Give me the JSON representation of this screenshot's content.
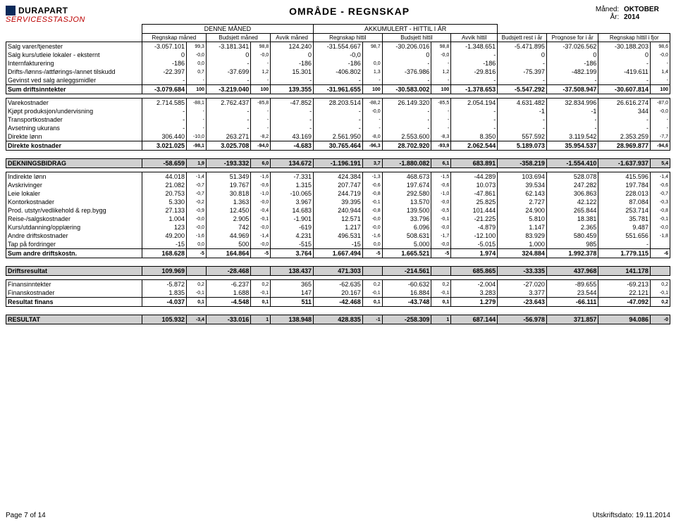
{
  "logo": {
    "line1": "DURAPART",
    "line2": "SERVICESSTASJON"
  },
  "title": "OMRÅDE - REGNSKAP",
  "meta": {
    "month_label": "Måned:",
    "month": "OKTOBER",
    "year_label": "År:",
    "year": "2014"
  },
  "group_headers": {
    "g1": "DENNE MÅNED",
    "g2": "AKKUMULERT - HITTIL I ÅR"
  },
  "sub_headers": {
    "label": "",
    "c1": "Regnskap måned",
    "c2": "Budsjett måned",
    "c3": "Avvik måned",
    "c4": "Regnskap hittil",
    "c5": "Budsjett hittil",
    "c6": "Avvik hittil",
    "c7": "Budsjett rest i år",
    "c8": "Prognose for i år",
    "c9": "Regnskap hittil i fjor"
  },
  "rows": [
    {
      "l": "Salg varer/tjenester",
      "v": [
        "-3.057.101",
        "99,3",
        "-3.181.341",
        "98,8",
        "124.240",
        "-31.554.667",
        "98,7",
        "-30.206.016",
        "98,8",
        "-1.348.651",
        "-5.471.895",
        "-37.026.562",
        "-30.188.203",
        "98,6"
      ]
    },
    {
      "l": "Salg kurs/utleie lokaler - eksternt",
      "v": [
        "0",
        "-0,0",
        "0",
        "-0,0",
        "0",
        "-0,0",
        "",
        "0",
        "-0,0",
        "-",
        "0",
        "0",
        "0",
        "-0,0"
      ]
    },
    {
      "l": "Internfakturering",
      "v": [
        "-186",
        "0,0",
        "-",
        "-",
        "-186",
        "-186",
        "0,0",
        "-",
        "-",
        "-186",
        "-",
        "-186",
        "-",
        "-"
      ]
    },
    {
      "l": "Drifts-/lønns-/attførings-/annet tilskudd",
      "v": [
        "-22.397",
        "0,7",
        "-37.699",
        "1,2",
        "15.301",
        "-406.802",
        "1,3",
        "-376.986",
        "1,2",
        "-29.816",
        "-75.397",
        "-482.199",
        "-419.611",
        "1,4"
      ]
    },
    {
      "l": "Gevinst ved salg anleggsmidler",
      "v": [
        "-",
        "-",
        "-",
        "-",
        "-",
        "-",
        "-",
        "-",
        "-",
        "-",
        "-",
        "-",
        "-",
        "-"
      ]
    },
    {
      "l": "Sum driftsinntekter",
      "total": true,
      "v": [
        "-3.079.684",
        "100",
        "-3.219.040",
        "100",
        "139.355",
        "-31.961.655",
        "100",
        "-30.583.002",
        "100",
        "-1.378.653",
        "-5.547.292",
        "-37.508.947",
        "-30.607.814",
        "100"
      ]
    },
    {
      "l": "Varekostnader",
      "first": true,
      "v": [
        "2.714.585",
        "-88,1",
        "2.762.437",
        "-85,8",
        "-47.852",
        "28.203.514",
        "-88,2",
        "26.149.320",
        "-85,5",
        "2.054.194",
        "4.631.482",
        "32.834.996",
        "26.616.274",
        "-87,0"
      ]
    },
    {
      "l": "Kjøpt produksjon/undervisning",
      "v": [
        "-",
        "-",
        "-",
        "-",
        "-",
        "-",
        "-0,0",
        "-",
        "-",
        "-",
        "-1",
        "-1",
        "344",
        "-0,0"
      ]
    },
    {
      "l": "Transportkostnader",
      "v": [
        "-",
        "-",
        "-",
        "-",
        "-",
        "-",
        "-",
        "-",
        "-",
        "-",
        "-",
        "-",
        "-",
        "-"
      ]
    },
    {
      "l": "Avsetning ukurans",
      "v": [
        "-",
        "-",
        "-",
        "-",
        "-",
        "-",
        "-",
        "-",
        "-",
        "-",
        "-",
        "-",
        "-",
        "-"
      ]
    },
    {
      "l": "Direkte lønn",
      "v": [
        "306.440",
        "-10,0",
        "263.271",
        "-8,2",
        "43.169",
        "2.561.950",
        "-8,0",
        "2.553.600",
        "-8,3",
        "8.350",
        "557.592",
        "3.119.542",
        "2.353.259",
        "-7,7"
      ]
    },
    {
      "l": "Direkte kostnader",
      "total": true,
      "v": [
        "3.021.025",
        "-98,1",
        "3.025.708",
        "-94,0",
        "-4.683",
        "30.765.464",
        "-96,3",
        "28.702.920",
        "-93,9",
        "2.062.544",
        "5.189.073",
        "35.954.537",
        "28.969.877",
        "-94,6"
      ]
    },
    {
      "l": "DEKNINGSBIDRAG",
      "section": "dark",
      "v": [
        "-58.659",
        "1,9",
        "-193.332",
        "6,0",
        "134.672",
        "-1.196.191",
        "3,7",
        "-1.880.082",
        "6,1",
        "683.891",
        "-358.219",
        "-1.554.410",
        "-1.637.937",
        "5,4"
      ]
    },
    {
      "l": "Indirekte lønn",
      "first": true,
      "v": [
        "44.018",
        "-1,4",
        "51.349",
        "-1,6",
        "-7.331",
        "424.384",
        "-1,3",
        "468.673",
        "-1,5",
        "-44.289",
        "103.694",
        "528.078",
        "415.596",
        "-1,4"
      ]
    },
    {
      "l": "Avskrivinger",
      "v": [
        "21.082",
        "-0,7",
        "19.767",
        "-0,6",
        "1.315",
        "207.747",
        "-0,6",
        "197.674",
        "-0,6",
        "10.073",
        "39.534",
        "247.282",
        "197.784",
        "-0,6"
      ]
    },
    {
      "l": "Leie lokaler",
      "v": [
        "20.753",
        "-0,7",
        "30.818",
        "-1,0",
        "-10.065",
        "244.719",
        "-0,8",
        "292.580",
        "-1,0",
        "-47.861",
        "62.143",
        "306.863",
        "228.013",
        "-0,7"
      ]
    },
    {
      "l": "Kontorkostnader",
      "v": [
        "5.330",
        "-0,2",
        "1.363",
        "-0,0",
        "3.967",
        "39.395",
        "-0,1",
        "13.570",
        "-0,0",
        "25.825",
        "2.727",
        "42.122",
        "87.084",
        "-0,3"
      ]
    },
    {
      "l": "Prod. utstyr/vedlikehold & rep.bygg",
      "v": [
        "27.133",
        "-0,9",
        "12.450",
        "-0,4",
        "14.683",
        "240.944",
        "-0,8",
        "139.500",
        "-0,5",
        "101.444",
        "24.900",
        "265.844",
        "253.714",
        "-0,8"
      ]
    },
    {
      "l": "Reise-/salgskostnader",
      "v": [
        "1.004",
        "-0,0",
        "2.905",
        "-0,1",
        "-1.901",
        "12.571",
        "-0,0",
        "33.796",
        "-0,1",
        "-21.225",
        "5.810",
        "18.381",
        "35.781",
        "-0,1"
      ]
    },
    {
      "l": "Kurs/utdanning/opplæring",
      "v": [
        "123",
        "-0,0",
        "742",
        "-0,0",
        "-619",
        "1.217",
        "-0,0",
        "6.096",
        "-0,0",
        "-4.879",
        "1.147",
        "2.365",
        "9.487",
        "-0,0"
      ]
    },
    {
      "l": "Andre driftskostnader",
      "v": [
        "49.200",
        "-1,6",
        "44.969",
        "-1,4",
        "4.231",
        "496.531",
        "-1,6",
        "508.631",
        "-1,7",
        "-12.100",
        "83.929",
        "580.459",
        "551.656",
        "-1,8"
      ]
    },
    {
      "l": "Tap på fordringer",
      "v": [
        "-15",
        "0,0",
        "500",
        "-0,0",
        "-515",
        "-15",
        "0,0",
        "5.000",
        "-0,0",
        "-5.015",
        "1.000",
        "985",
        "-",
        ""
      ]
    },
    {
      "l": "Sum andre driftskostn.",
      "total": true,
      "v": [
        "168.628",
        "-5",
        "164.864",
        "-5",
        "3.764",
        "1.667.494",
        "-5",
        "1.665.521",
        "-5",
        "1.974",
        "324.884",
        "1.992.378",
        "1.779.115",
        "-6"
      ]
    },
    {
      "l": "Driftsresultat",
      "section": "dark",
      "v": [
        "109.969",
        "",
        "-28.468",
        "",
        "138.437",
        "471.303",
        "",
        "-214.561",
        "",
        "685.865",
        "-33.335",
        "437.968",
        "141.178",
        ""
      ]
    },
    {
      "l": "Finansinntekter",
      "first": true,
      "v": [
        "-5.872",
        "0,2",
        "-6.237",
        "0,2",
        "365",
        "-62.635",
        "0,2",
        "-60.632",
        "0,2",
        "-2.004",
        "-27.020",
        "-89.655",
        "-69.213",
        "0,2"
      ]
    },
    {
      "l": "Finanskostnader",
      "v": [
        "1.835",
        "-0,1",
        "1.688",
        "-0,1",
        "147",
        "20.167",
        "-0,1",
        "16.884",
        "-0,1",
        "3.283",
        "3.377",
        "23.544",
        "22.121",
        "-0,1"
      ]
    },
    {
      "l": "Resultat finans",
      "total": true,
      "v": [
        "-4.037",
        "0,1",
        "-4.548",
        "0,1",
        "511",
        "-42.468",
        "0,1",
        "-43.748",
        "0,1",
        "1.279",
        "-23.643",
        "-66.111",
        "-47.092",
        "0,2"
      ]
    },
    {
      "l": "RESULTAT",
      "section": "dark",
      "v": [
        "105.932",
        "-3,4",
        "-33.016",
        "1",
        "138.948",
        "428.835",
        "-1",
        "-258.309",
        "1",
        "687.144",
        "-56.978",
        "371.857",
        "94.086",
        "-0"
      ]
    }
  ],
  "footer": {
    "left": "Page 7 of 14",
    "right": "Utskriftsdato: 19.11.2014"
  },
  "col_widths": {
    "num": "55px",
    "pct": "22px",
    "num_wide": "62px"
  }
}
